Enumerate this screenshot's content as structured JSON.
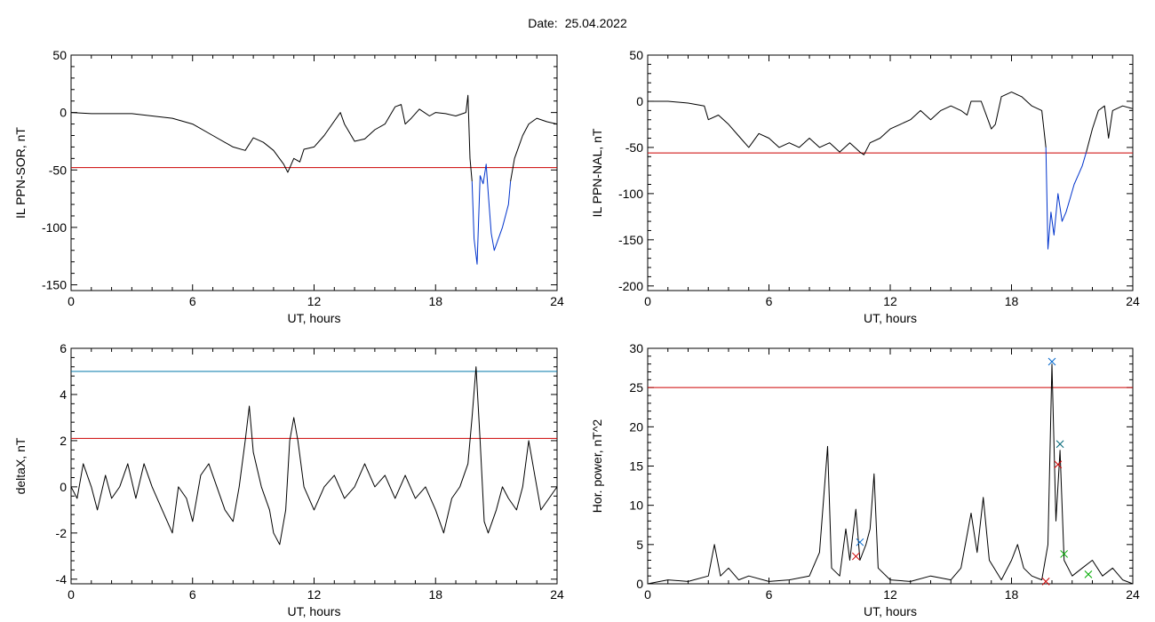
{
  "header": {
    "date_label": "Date:",
    "date_value": "25.04.2022"
  },
  "chart_data": [
    {
      "type": "line",
      "ylabel": "IL PPN-SOR, nT",
      "xlabel": "UT, hours",
      "xlim": [
        0,
        24
      ],
      "ylim": [
        -155,
        50
      ],
      "xticks": [
        0,
        6,
        12,
        18,
        24
      ],
      "yticks": [
        -150,
        -100,
        -50,
        0,
        50
      ],
      "grid": false,
      "series": [
        {
          "color": "#000000",
          "values": [
            [
              0,
              0
            ],
            [
              1,
              -1
            ],
            [
              2,
              -1
            ],
            [
              3,
              -1
            ],
            [
              4,
              -3
            ],
            [
              5,
              -5
            ],
            [
              6,
              -10
            ],
            [
              7,
              -20
            ],
            [
              8,
              -30
            ],
            [
              8.6,
              -33
            ],
            [
              9,
              -22
            ],
            [
              9.5,
              -26
            ],
            [
              10,
              -33
            ],
            [
              10.5,
              -45
            ],
            [
              10.7,
              -52
            ],
            [
              11,
              -40
            ],
            [
              11.3,
              -43
            ],
            [
              11.5,
              -32
            ],
            [
              12,
              -30
            ],
            [
              12.5,
              -20
            ],
            [
              13.3,
              0
            ],
            [
              13.5,
              -10
            ],
            [
              14,
              -25
            ],
            [
              14.5,
              -23
            ],
            [
              15,
              -15
            ],
            [
              15.5,
              -10
            ],
            [
              16,
              5
            ],
            [
              16.3,
              7
            ],
            [
              16.5,
              -10
            ],
            [
              16.8,
              -5
            ],
            [
              17.2,
              3
            ],
            [
              17.7,
              -3
            ],
            [
              18,
              0
            ],
            [
              18.5,
              -1
            ],
            [
              19,
              -3
            ],
            [
              19.5,
              0
            ],
            [
              19.6,
              15
            ],
            [
              19.7,
              -40
            ],
            [
              19.8,
              -60
            ]
          ]
        },
        {
          "color": "#0033cc",
          "values": [
            [
              19.8,
              -60
            ],
            [
              19.9,
              -110
            ],
            [
              20.05,
              -132
            ],
            [
              20.2,
              -55
            ],
            [
              20.35,
              -62
            ],
            [
              20.5,
              -45
            ],
            [
              20.6,
              -70
            ],
            [
              20.75,
              -105
            ],
            [
              20.9,
              -120
            ],
            [
              21.1,
              -110
            ],
            [
              21.3,
              -100
            ],
            [
              21.45,
              -90
            ],
            [
              21.6,
              -80
            ],
            [
              21.7,
              -60
            ]
          ]
        },
        {
          "color": "#000000",
          "values": [
            [
              21.7,
              -60
            ],
            [
              21.9,
              -40
            ],
            [
              22.1,
              -30
            ],
            [
              22.3,
              -20
            ],
            [
              22.6,
              -10
            ],
            [
              23,
              -5
            ],
            [
              23.5,
              -8
            ],
            [
              24,
              -10
            ]
          ]
        }
      ],
      "hlines": [
        {
          "y": -48,
          "color": "#cc0000"
        }
      ]
    },
    {
      "type": "line",
      "ylabel": "IL PPN-NAL, nT",
      "xlabel": "UT, hours",
      "xlim": [
        0,
        24
      ],
      "ylim": [
        -205,
        50
      ],
      "xticks": [
        0,
        6,
        12,
        18,
        24
      ],
      "yticks": [
        -200,
        -150,
        -100,
        -50,
        0,
        50
      ],
      "grid": false,
      "series": [
        {
          "color": "#000000",
          "values": [
            [
              0,
              0
            ],
            [
              1,
              0
            ],
            [
              2,
              -2
            ],
            [
              2.8,
              -5
            ],
            [
              3,
              -20
            ],
            [
              3.5,
              -15
            ],
            [
              4,
              -25
            ],
            [
              4.6,
              -40
            ],
            [
              5,
              -50
            ],
            [
              5.5,
              -35
            ],
            [
              6,
              -40
            ],
            [
              6.5,
              -50
            ],
            [
              7,
              -45
            ],
            [
              7.5,
              -50
            ],
            [
              8,
              -40
            ],
            [
              8.5,
              -50
            ],
            [
              9,
              -45
            ],
            [
              9.5,
              -55
            ],
            [
              10,
              -45
            ],
            [
              10.5,
              -55
            ],
            [
              10.7,
              -58
            ],
            [
              11,
              -45
            ],
            [
              11.5,
              -40
            ],
            [
              12,
              -30
            ],
            [
              12.5,
              -25
            ],
            [
              13,
              -20
            ],
            [
              13.5,
              -10
            ],
            [
              14,
              -20
            ],
            [
              14.5,
              -10
            ],
            [
              15,
              -5
            ],
            [
              15.5,
              -10
            ],
            [
              15.8,
              -15
            ],
            [
              16,
              0
            ],
            [
              16.5,
              0
            ],
            [
              17,
              -30
            ],
            [
              17.2,
              -25
            ],
            [
              17.5,
              5
            ],
            [
              18,
              10
            ],
            [
              18.5,
              5
            ],
            [
              19,
              -5
            ],
            [
              19.5,
              -10
            ],
            [
              19.6,
              -30
            ],
            [
              19.7,
              -50
            ]
          ]
        },
        {
          "color": "#0033cc",
          "values": [
            [
              19.7,
              -50
            ],
            [
              19.8,
              -160
            ],
            [
              19.95,
              -120
            ],
            [
              20.1,
              -145
            ],
            [
              20.3,
              -100
            ],
            [
              20.5,
              -130
            ],
            [
              20.7,
              -120
            ],
            [
              20.9,
              -105
            ],
            [
              21.1,
              -90
            ],
            [
              21.3,
              -80
            ],
            [
              21.5,
              -70
            ],
            [
              21.7,
              -55
            ]
          ]
        },
        {
          "color": "#000000",
          "values": [
            [
              21.7,
              -55
            ],
            [
              22,
              -30
            ],
            [
              22.3,
              -10
            ],
            [
              22.6,
              -5
            ],
            [
              22.8,
              -40
            ],
            [
              23,
              -10
            ],
            [
              23.5,
              -5
            ],
            [
              24,
              -8
            ]
          ]
        }
      ],
      "hlines": [
        {
          "y": -56,
          "color": "#cc0000"
        }
      ]
    },
    {
      "type": "line",
      "ylabel": "deltaX, nT",
      "xlabel": "UT, hours",
      "xlim": [
        0,
        24
      ],
      "ylim": [
        -4.2,
        6
      ],
      "xticks": [
        0,
        6,
        12,
        18,
        24
      ],
      "yticks": [
        -4,
        -2,
        0,
        2,
        4,
        6
      ],
      "grid": false,
      "series": [
        {
          "color": "#000000",
          "values": [
            [
              0,
              0
            ],
            [
              0.3,
              -0.5
            ],
            [
              0.6,
              1
            ],
            [
              1,
              0
            ],
            [
              1.3,
              -1
            ],
            [
              1.7,
              0.5
            ],
            [
              2,
              -0.5
            ],
            [
              2.4,
              0
            ],
            [
              2.8,
              1
            ],
            [
              3.2,
              -0.5
            ],
            [
              3.6,
              1
            ],
            [
              4,
              0
            ],
            [
              4.5,
              -1
            ],
            [
              5,
              -2
            ],
            [
              5.3,
              0
            ],
            [
              5.7,
              -0.5
            ],
            [
              6,
              -1.5
            ],
            [
              6.4,
              0.5
            ],
            [
              6.8,
              1
            ],
            [
              7.2,
              0
            ],
            [
              7.6,
              -1
            ],
            [
              8,
              -1.5
            ],
            [
              8.3,
              0
            ],
            [
              8.6,
              2
            ],
            [
              8.8,
              3.5
            ],
            [
              9,
              1.5
            ],
            [
              9.4,
              0
            ],
            [
              9.8,
              -1
            ],
            [
              10,
              -2
            ],
            [
              10.3,
              -2.5
            ],
            [
              10.6,
              -1
            ],
            [
              10.8,
              2
            ],
            [
              11,
              3
            ],
            [
              11.2,
              2
            ],
            [
              11.5,
              0
            ],
            [
              12,
              -1
            ],
            [
              12.5,
              0
            ],
            [
              13,
              0.5
            ],
            [
              13.5,
              -0.5
            ],
            [
              14,
              0
            ],
            [
              14.5,
              1
            ],
            [
              15,
              0
            ],
            [
              15.5,
              0.5
            ],
            [
              16,
              -0.5
            ],
            [
              16.5,
              0.5
            ],
            [
              17,
              -0.5
            ],
            [
              17.5,
              0
            ],
            [
              18,
              -1
            ],
            [
              18.4,
              -2
            ],
            [
              18.8,
              -0.5
            ],
            [
              19.2,
              0
            ],
            [
              19.6,
              1
            ],
            [
              19.8,
              3
            ],
            [
              20,
              5.2
            ],
            [
              20.2,
              2
            ],
            [
              20.4,
              -1.5
            ],
            [
              20.6,
              -2
            ],
            [
              21,
              -1
            ],
            [
              21.3,
              0
            ],
            [
              21.6,
              -0.5
            ],
            [
              22,
              -1
            ],
            [
              22.3,
              0
            ],
            [
              22.6,
              2
            ],
            [
              22.9,
              0.5
            ],
            [
              23.2,
              -1
            ],
            [
              23.6,
              -0.5
            ],
            [
              24,
              0
            ]
          ]
        }
      ],
      "hlines": [
        {
          "y": 5,
          "color": "#0077aa"
        },
        {
          "y": 2.1,
          "color": "#cc0000"
        }
      ]
    },
    {
      "type": "line",
      "ylabel": "Hor. power, nT^2",
      "xlabel": "UT, hours",
      "xlim": [
        0,
        24
      ],
      "ylim": [
        0,
        30
      ],
      "xticks": [
        0,
        6,
        12,
        18,
        24
      ],
      "yticks": [
        0,
        5,
        10,
        15,
        20,
        25,
        30
      ],
      "grid": false,
      "series": [
        {
          "color": "#000000",
          "values": [
            [
              0,
              0
            ],
            [
              1,
              0.5
            ],
            [
              2,
              0.3
            ],
            [
              3,
              1
            ],
            [
              3.3,
              5
            ],
            [
              3.6,
              1
            ],
            [
              4,
              2
            ],
            [
              4.5,
              0.5
            ],
            [
              5,
              1
            ],
            [
              6,
              0.3
            ],
            [
              7,
              0.5
            ],
            [
              8,
              1
            ],
            [
              8.5,
              4
            ],
            [
              8.9,
              17.5
            ],
            [
              9.1,
              2
            ],
            [
              9.5,
              1
            ],
            [
              9.8,
              7
            ],
            [
              10,
              3
            ],
            [
              10.3,
              9.5
            ],
            [
              10.5,
              3
            ],
            [
              10.8,
              5
            ],
            [
              11,
              7
            ],
            [
              11.2,
              14
            ],
            [
              11.4,
              2
            ],
            [
              12,
              0.5
            ],
            [
              13,
              0.3
            ],
            [
              14,
              1
            ],
            [
              15,
              0.5
            ],
            [
              15.5,
              2
            ],
            [
              16,
              9
            ],
            [
              16.3,
              4
            ],
            [
              16.6,
              11
            ],
            [
              16.9,
              3
            ],
            [
              17.5,
              0.5
            ],
            [
              18,
              3
            ],
            [
              18.3,
              5
            ],
            [
              18.6,
              2
            ],
            [
              19,
              1
            ],
            [
              19.5,
              0.5
            ],
            [
              19.8,
              5
            ],
            [
              20,
              28
            ],
            [
              20.2,
              8
            ],
            [
              20.4,
              17
            ],
            [
              20.6,
              3
            ],
            [
              21,
              1
            ],
            [
              21.5,
              2
            ],
            [
              22,
              3
            ],
            [
              22.5,
              1
            ],
            [
              23,
              2
            ],
            [
              23.5,
              0.5
            ],
            [
              24,
              0
            ]
          ]
        }
      ],
      "hlines": [
        {
          "y": 25,
          "color": "#cc0000"
        }
      ],
      "markers": [
        {
          "x": 10.5,
          "y": 5.3,
          "color": "#0066cc"
        },
        {
          "x": 10.3,
          "y": 3.5,
          "color": "#cc0000"
        },
        {
          "x": 20,
          "y": 28.3,
          "color": "#0066cc"
        },
        {
          "x": 20.4,
          "y": 17.8,
          "color": "#006677"
        },
        {
          "x": 20.3,
          "y": 15.2,
          "color": "#cc0000"
        },
        {
          "x": 20.6,
          "y": 3.8,
          "color": "#00aa00"
        },
        {
          "x": 19.7,
          "y": 0.3,
          "color": "#cc0000"
        },
        {
          "x": 21.8,
          "y": 1.2,
          "color": "#00aa00"
        }
      ]
    }
  ]
}
